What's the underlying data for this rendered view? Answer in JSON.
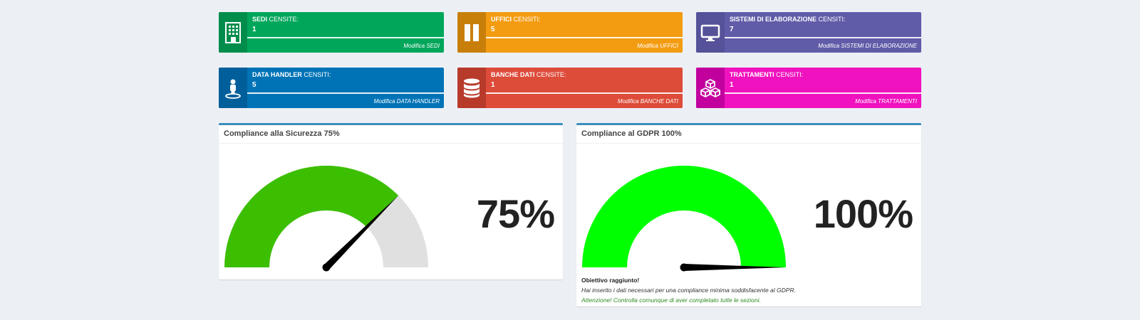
{
  "infoboxes": [
    {
      "id": "sedi",
      "label_bold": "SEDI",
      "label_rest": " CENSITE:",
      "count": "1",
      "link": "Modifica SEDI",
      "icon": "building-icon",
      "icon_bg": "#008d4c",
      "bg": "#00a65a"
    },
    {
      "id": "uffici",
      "label_bold": "UFFICI",
      "label_rest": " CENSITI:",
      "count": "5",
      "link": "Modifica UFFICI",
      "icon": "columns-icon",
      "icon_bg": "#c87f0a",
      "bg": "#f39c12"
    },
    {
      "id": "sistemi",
      "label_bold": "SISTEMI DI ELABORAZIONE",
      "label_rest": " CENSITI:",
      "count": "7",
      "link": "Modifica SISTEMI DI ELABORAZIONE",
      "icon": "desktop-icon",
      "icon_bg": "#555299",
      "bg": "#605ca8"
    },
    {
      "id": "datahandler",
      "label_bold": "DATA HANDLER",
      "label_rest": " CENSITI:",
      "count": "5",
      "link": "Modifica DATA HANDLER",
      "icon": "street-view-icon",
      "icon_bg": "#005f9a",
      "bg": "#0073b7"
    },
    {
      "id": "banche",
      "label_bold": "BANCHE DATI",
      "label_rest": " CENSITE:",
      "count": "1",
      "link": "Modifica BANCHE DATI",
      "icon": "database-icon",
      "icon_bg": "#b83a2b",
      "bg": "#dd4b39"
    },
    {
      "id": "trattamenti",
      "label_bold": "TRATTAMENTI",
      "label_rest": " CENSITI:",
      "count": "1",
      "link": "Modifica TRATTAMENTI",
      "icon": "cubes-icon",
      "icon_bg": "#c2009e",
      "bg": "#f012be"
    }
  ],
  "compliance": [
    {
      "id": "sicurezza",
      "title": "Compliance alla Sicurezza 75%",
      "value_text": "75%",
      "fraction": 0.75,
      "fill_color": "#3cbf00",
      "track_color": "#e0e0e0"
    },
    {
      "id": "gdpr",
      "title": "Compliance al GDPR 100%",
      "value_text": "100%",
      "fraction": 1.0,
      "fill_color": "#00ff00",
      "track_color": "#e0e0e0",
      "messages": {
        "title": "Obiettivo raggiunto!",
        "text": "Hai inserito i dati necessari per una compliance minima soddisfacente al GDPR.",
        "warning": "Attenzione! Controlla comunque di aver completato tutte le sezioni."
      }
    }
  ]
}
